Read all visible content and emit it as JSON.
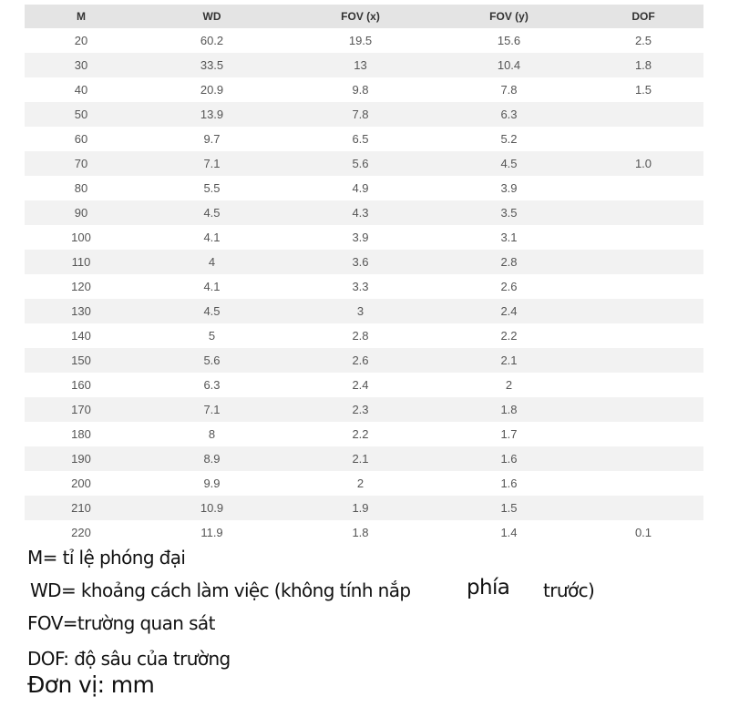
{
  "table": {
    "headers": [
      "M",
      "WD",
      "FOV (x)",
      "FOV (y)",
      "DOF"
    ],
    "rows": [
      [
        "20",
        "60.2",
        "19.5",
        "15.6",
        "2.5"
      ],
      [
        "30",
        "33.5",
        "13",
        "10.4",
        "1.8"
      ],
      [
        "40",
        "20.9",
        "9.8",
        "7.8",
        "1.5"
      ],
      [
        "50",
        "13.9",
        "7.8",
        "6.3",
        ""
      ],
      [
        "60",
        "9.7",
        "6.5",
        "5.2",
        ""
      ],
      [
        "70",
        "7.1",
        "5.6",
        "4.5",
        "1.0"
      ],
      [
        "80",
        "5.5",
        "4.9",
        "3.9",
        ""
      ],
      [
        "90",
        "4.5",
        "4.3",
        "3.5",
        ""
      ],
      [
        "100",
        "4.1",
        "3.9",
        "3.1",
        ""
      ],
      [
        "110",
        "4",
        "3.6",
        "2.8",
        ""
      ],
      [
        "120",
        "4.1",
        "3.3",
        "2.6",
        ""
      ],
      [
        "130",
        "4.5",
        "3",
        "2.4",
        ""
      ],
      [
        "140",
        "5",
        "2.8",
        "2.2",
        ""
      ],
      [
        "150",
        "5.6",
        "2.6",
        "2.1",
        ""
      ],
      [
        "160",
        "6.3",
        "2.4",
        "2",
        ""
      ],
      [
        "170",
        "7.1",
        "2.3",
        "1.8",
        ""
      ],
      [
        "180",
        "8",
        "2.2",
        "1.7",
        ""
      ],
      [
        "190",
        "8.9",
        "2.1",
        "1.6",
        ""
      ],
      [
        "200",
        "9.9",
        "2",
        "1.6",
        ""
      ],
      [
        "210",
        "10.9",
        "1.9",
        "1.5",
        ""
      ],
      [
        "220",
        "11.9",
        "1.8",
        "1.4",
        "0.1"
      ]
    ]
  },
  "notes": {
    "m": "M= tỉ lệ phóng đại",
    "wd_a": "WD= khoảng cách làm việc (không tính nắp",
    "wd_b": "phía",
    "wd_c": "trước)",
    "fov": "FOV=trường quan sát",
    "dof": "DOF: độ sâu của trường",
    "unit": "Đơn vị: mm"
  }
}
